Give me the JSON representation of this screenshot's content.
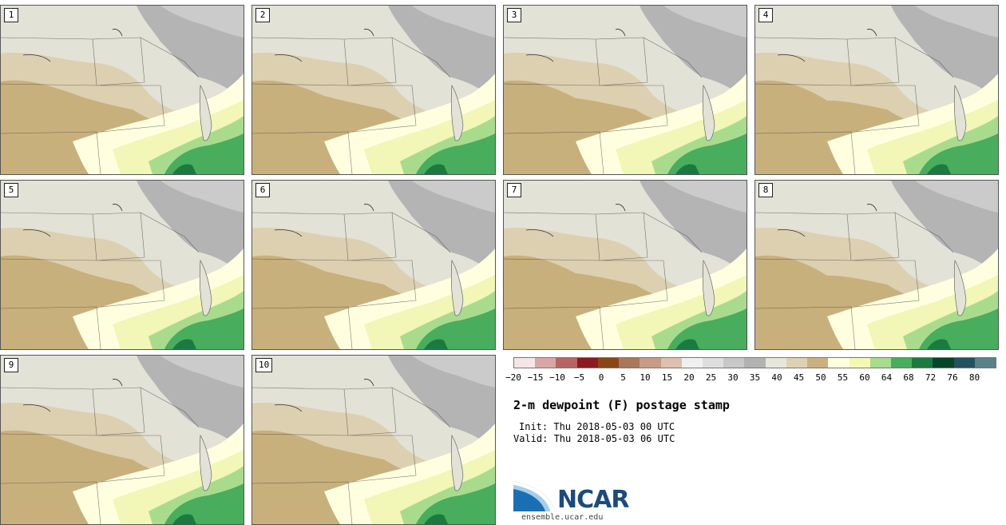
{
  "panels": [
    {
      "label": "1"
    },
    {
      "label": "2"
    },
    {
      "label": "3"
    },
    {
      "label": "4"
    },
    {
      "label": "5"
    },
    {
      "label": "6"
    },
    {
      "label": "7"
    },
    {
      "label": "8"
    },
    {
      "label": "9"
    },
    {
      "label": "10"
    }
  ],
  "colorbar": {
    "ticks": [
      "−20",
      "−15",
      "−10",
      "−5",
      "0",
      "5",
      "10",
      "15",
      "20",
      "25",
      "30",
      "35",
      "40",
      "45",
      "50",
      "55",
      "60",
      "64",
      "68",
      "72",
      "76",
      "80"
    ],
    "colors": [
      "#f4e6e6",
      "#d8a6a6",
      "#b86464",
      "#8c1a22",
      "#8a4614",
      "#a9775a",
      "#c69c86",
      "#ddc0b0",
      "#f0f0f0",
      "#dedede",
      "#c8c8c8",
      "#b2b2b2",
      "#e6e6dc",
      "#ddd1b2",
      "#c9b17f",
      "#ffffe0",
      "#f4f8b4",
      "#a7dc8c",
      "#48ad5c",
      "#1b7a40",
      "#074428",
      "#23515e",
      "#5a8186"
    ]
  },
  "map_colors": {
    "band_35_40": "#e2e2d6",
    "band_40_45": "#dcd0b0",
    "band_45_50": "#c8b07c",
    "band_50_55": "#ffffe0",
    "band_55_60": "#f2f6b6",
    "band_60_64": "#a8dc8c",
    "band_64_68": "#48ad5c",
    "band_68_72": "#1b7a40",
    "band_30_35": "#b4b4b4",
    "band_25_30": "#cbcbcb"
  },
  "title": "2-m dewpoint (F) postage stamp",
  "init": "Init: Thu 2018-05-03 00 UTC",
  "valid": "Valid: Thu 2018-05-03 06 UTC",
  "logo_text": "NCAR",
  "site": "ensemble.ucar.edu"
}
